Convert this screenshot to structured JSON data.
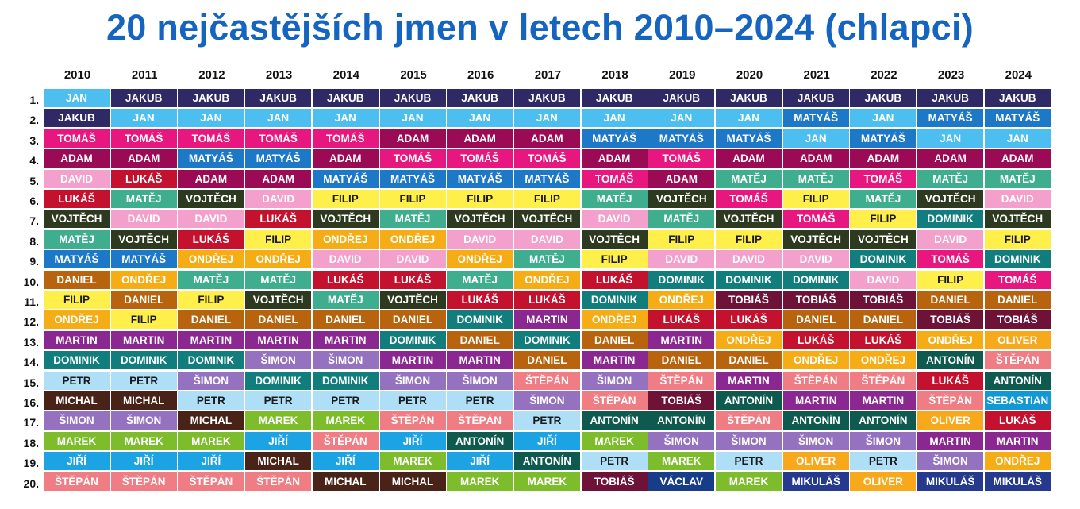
{
  "chart_data": {
    "type": "table",
    "title": "20 nejčastějších jmen v letech 2010–2024 (chlapci)",
    "years": [
      "2010",
      "2011",
      "2012",
      "2013",
      "2014",
      "2015",
      "2016",
      "2017",
      "2018",
      "2019",
      "2020",
      "2021",
      "2022",
      "2023",
      "2024"
    ],
    "ranks": [
      "1.",
      "2.",
      "3.",
      "4.",
      "5.",
      "6.",
      "7.",
      "8.",
      "9.",
      "10.",
      "11.",
      "12.",
      "13.",
      "14.",
      "15.",
      "16.",
      "17.",
      "18.",
      "19.",
      "20."
    ],
    "rankings": [
      [
        "JAN",
        "JAKUB",
        "TOMÁŠ",
        "ADAM",
        "DAVID",
        "LUKÁŠ",
        "VOJTĚCH",
        "MATĚJ",
        "MATYÁŠ",
        "DANIEL",
        "FILIP",
        "ONDŘEJ",
        "MARTIN",
        "DOMINIK",
        "PETR",
        "MICHAL",
        "ŠIMON",
        "MAREK",
        "JIŘÍ",
        "ŠTĚPÁN"
      ],
      [
        "JAKUB",
        "JAN",
        "TOMÁŠ",
        "ADAM",
        "LUKÁŠ",
        "MATĚJ",
        "DAVID",
        "VOJTĚCH",
        "MATYÁŠ",
        "ONDŘEJ",
        "DANIEL",
        "FILIP",
        "MARTIN",
        "DOMINIK",
        "PETR",
        "MICHAL",
        "ŠIMON",
        "MAREK",
        "JIŘÍ",
        "ŠTĚPÁN"
      ],
      [
        "JAKUB",
        "JAN",
        "TOMÁŠ",
        "MATYÁŠ",
        "ADAM",
        "VOJTĚCH",
        "DAVID",
        "LUKÁŠ",
        "ONDŘEJ",
        "MATĚJ",
        "FILIP",
        "DANIEL",
        "MARTIN",
        "DOMINIK",
        "ŠIMON",
        "PETR",
        "MICHAL",
        "MAREK",
        "JIŘÍ",
        "ŠTĚPÁN"
      ],
      [
        "JAKUB",
        "JAN",
        "TOMÁŠ",
        "MATYÁŠ",
        "ADAM",
        "DAVID",
        "LUKÁŠ",
        "FILIP",
        "ONDŘEJ",
        "MATĚJ",
        "VOJTĚCH",
        "DANIEL",
        "MARTIN",
        "ŠIMON",
        "DOMINIK",
        "PETR",
        "MAREK",
        "JIŘÍ",
        "MICHAL",
        "ŠTĚPÁN"
      ],
      [
        "JAKUB",
        "JAN",
        "TOMÁŠ",
        "ADAM",
        "MATYÁŠ",
        "FILIP",
        "VOJTĚCH",
        "ONDŘEJ",
        "DAVID",
        "LUKÁŠ",
        "MATĚJ",
        "DANIEL",
        "MARTIN",
        "ŠIMON",
        "DOMINIK",
        "PETR",
        "MAREK",
        "ŠTĚPÁN",
        "JIŘÍ",
        "MICHAL"
      ],
      [
        "JAKUB",
        "JAN",
        "ADAM",
        "TOMÁŠ",
        "MATYÁŠ",
        "FILIP",
        "MATĚJ",
        "ONDŘEJ",
        "DAVID",
        "LUKÁŠ",
        "VOJTĚCH",
        "DANIEL",
        "DOMINIK",
        "MARTIN",
        "ŠIMON",
        "PETR",
        "ŠTĚPÁN",
        "JIŘÍ",
        "MAREK",
        "MICHAL"
      ],
      [
        "JAKUB",
        "JAN",
        "ADAM",
        "TOMÁŠ",
        "MATYÁŠ",
        "FILIP",
        "VOJTĚCH",
        "DAVID",
        "ONDŘEJ",
        "MATĚJ",
        "LUKÁŠ",
        "DOMINIK",
        "DANIEL",
        "MARTIN",
        "ŠIMON",
        "PETR",
        "ŠTĚPÁN",
        "ANTONÍN",
        "JIŘÍ",
        "MAREK"
      ],
      [
        "JAKUB",
        "JAN",
        "ADAM",
        "TOMÁŠ",
        "MATYÁŠ",
        "FILIP",
        "VOJTĚCH",
        "DAVID",
        "MATĚJ",
        "ONDŘEJ",
        "LUKÁŠ",
        "MARTIN",
        "DOMINIK",
        "DANIEL",
        "ŠTĚPÁN",
        "ŠIMON",
        "PETR",
        "JIŘÍ",
        "ANTONÍN",
        "MAREK"
      ],
      [
        "JAKUB",
        "JAN",
        "MATYÁŠ",
        "ADAM",
        "TOMÁŠ",
        "MATĚJ",
        "DAVID",
        "VOJTĚCH",
        "FILIP",
        "LUKÁŠ",
        "DOMINIK",
        "ONDŘEJ",
        "DANIEL",
        "MARTIN",
        "ŠIMON",
        "ŠTĚPÁN",
        "ANTONÍN",
        "MAREK",
        "PETR",
        "TOBIÁŠ"
      ],
      [
        "JAKUB",
        "JAN",
        "MATYÁŠ",
        "TOMÁŠ",
        "ADAM",
        "VOJTĚCH",
        "MATĚJ",
        "FILIP",
        "DAVID",
        "DOMINIK",
        "ONDŘEJ",
        "LUKÁŠ",
        "MARTIN",
        "DANIEL",
        "ŠTĚPÁN",
        "TOBIÁŠ",
        "ANTONÍN",
        "ŠIMON",
        "MAREK",
        "VÁCLAV"
      ],
      [
        "JAKUB",
        "JAN",
        "MATYÁŠ",
        "ADAM",
        "MATĚJ",
        "TOMÁŠ",
        "VOJTĚCH",
        "FILIP",
        "DAVID",
        "DOMINIK",
        "TOBIÁŠ",
        "LUKÁŠ",
        "ONDŘEJ",
        "DANIEL",
        "MARTIN",
        "ANTONÍN",
        "ŠTĚPÁN",
        "ŠIMON",
        "PETR",
        "MAREK"
      ],
      [
        "JAKUB",
        "MATYÁŠ",
        "JAN",
        "ADAM",
        "MATĚJ",
        "FILIP",
        "TOMÁŠ",
        "VOJTĚCH",
        "DAVID",
        "DOMINIK",
        "TOBIÁŠ",
        "DANIEL",
        "LUKÁŠ",
        "ONDŘEJ",
        "ŠTĚPÁN",
        "MARTIN",
        "ANTONÍN",
        "ŠIMON",
        "OLIVER",
        "MIKULÁŠ"
      ],
      [
        "JAKUB",
        "JAN",
        "MATYÁŠ",
        "ADAM",
        "TOMÁŠ",
        "MATĚJ",
        "FILIP",
        "VOJTĚCH",
        "DOMINIK",
        "DAVID",
        "TOBIÁŠ",
        "DANIEL",
        "LUKÁŠ",
        "ONDŘEJ",
        "ŠTĚPÁN",
        "MARTIN",
        "ANTONÍN",
        "ŠIMON",
        "PETR",
        "OLIVER"
      ],
      [
        "JAKUB",
        "MATYÁŠ",
        "JAN",
        "ADAM",
        "MATĚJ",
        "VOJTĚCH",
        "DOMINIK",
        "DAVID",
        "TOMÁŠ",
        "FILIP",
        "DANIEL",
        "TOBIÁŠ",
        "ONDŘEJ",
        "ANTONÍN",
        "LUKÁŠ",
        "ŠTĚPÁN",
        "OLIVER",
        "MARTIN",
        "ŠIMON",
        "MIKULÁŠ"
      ],
      [
        "JAKUB",
        "MATYÁŠ",
        "JAN",
        "ADAM",
        "MATĚJ",
        "DAVID",
        "VOJTĚCH",
        "FILIP",
        "DOMINIK",
        "TOMÁŠ",
        "DANIEL",
        "TOBIÁŠ",
        "OLIVER",
        "ŠTĚPÁN",
        "ANTONÍN",
        "SEBASTIAN",
        "LUKÁŠ",
        "MARTIN",
        "ONDŘEJ",
        "MIKULÁŠ"
      ]
    ],
    "name_colors": {
      "JAKUB": "#2f2a66",
      "JAN": "#4cbff0",
      "TOMÁŠ": "#e8177f",
      "ADAM": "#9b0b55",
      "DAVID": "#f3a0cc",
      "LUKÁŠ": "#c4122e",
      "MATĚJ": "#3fae8e",
      "VOJTĚCH": "#2e3a1f",
      "MATYÁŠ": "#1e78c8",
      "DANIEL": "#b8640e",
      "FILIP": "#ffef4a",
      "ONDŘEJ": "#f6ac14",
      "MARTIN": "#8b2790",
      "DOMINIK": "#117d7d",
      "PETR": "#aedff7",
      "MICHAL": "#4a2318",
      "ŠIMON": "#9572bf",
      "MAREK": "#7dbd2c",
      "JIŘÍ": "#1ba3e3",
      "ŠTĚPÁN": "#f07c84",
      "TOBIÁŠ": "#6e1238",
      "ANTONÍN": "#0e5a4e",
      "OLIVER": "#f7a81b",
      "VÁCLAV": "#163c8a",
      "MIKULÁŠ": "#253a8e",
      "SEBASTIAN": "#1199d6"
    },
    "dark_text_names": [
      "FILIP",
      "PETR"
    ]
  }
}
